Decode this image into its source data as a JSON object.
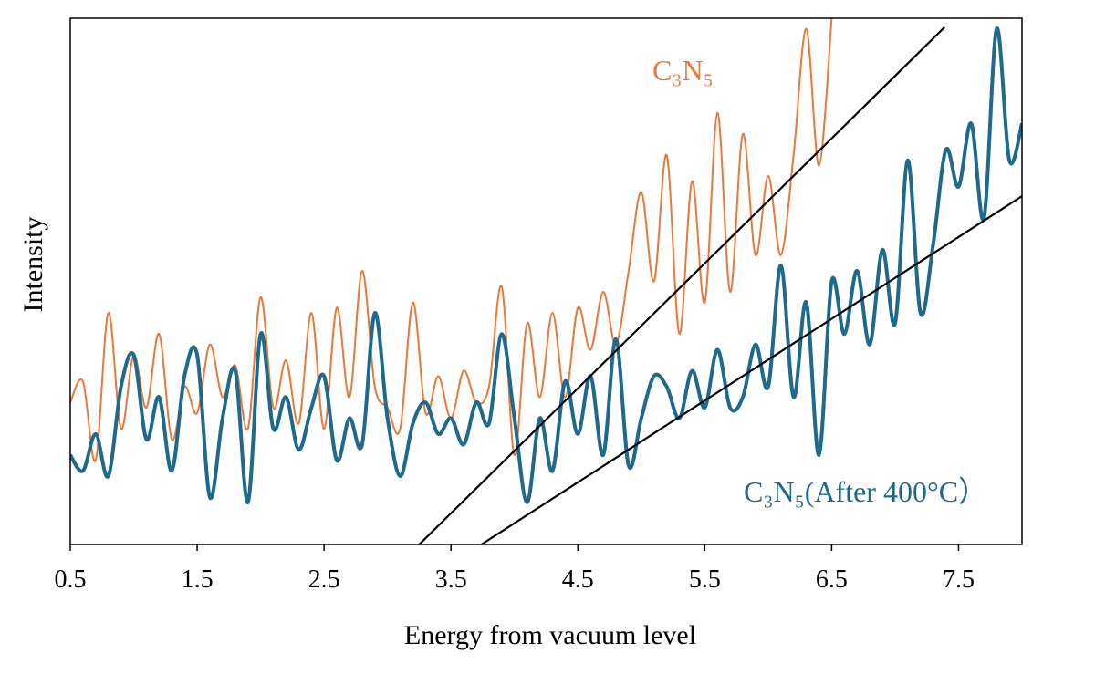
{
  "chart_data": {
    "type": "line",
    "x_label": "Energy from vacuum level",
    "y_label": "Intensity",
    "x": [
      0.5,
      0.6,
      0.7,
      0.8,
      0.9,
      1.0,
      1.1,
      1.2,
      1.3,
      1.4,
      1.5,
      1.6,
      1.7,
      1.8,
      1.9,
      2.0,
      2.1,
      2.2,
      2.3,
      2.4,
      2.5,
      2.6,
      2.7,
      2.8,
      2.9,
      3.0,
      3.1,
      3.2,
      3.3,
      3.4,
      3.5,
      3.6,
      3.7,
      3.8,
      3.9,
      4.0,
      4.1,
      4.2,
      4.3,
      4.4,
      4.5,
      4.6,
      4.7,
      4.8,
      4.9,
      5.0,
      5.1,
      5.2,
      5.3,
      5.4,
      5.5,
      5.6,
      5.7,
      5.8,
      5.9,
      6.0,
      6.1,
      6.2,
      6.3,
      6.4,
      6.5,
      6.6,
      6.7,
      6.8,
      6.9,
      7.0,
      7.1,
      7.2,
      7.3,
      7.4,
      7.5,
      7.6,
      7.7,
      7.8,
      7.9,
      8.0
    ],
    "series": [
      {
        "name": "C₃N₅",
        "color": "#e8793a",
        "width": 2,
        "values": [
          27,
          31,
          16,
          44,
          22,
          36,
          26,
          40,
          20,
          30,
          25,
          38,
          28,
          34,
          22,
          47,
          26,
          35,
          23,
          44,
          22,
          45,
          28,
          52,
          30,
          26,
          22,
          46,
          25,
          32,
          24,
          33,
          27,
          30,
          49,
          17,
          42,
          28,
          44,
          28,
          45,
          37,
          48,
          38,
          52,
          67,
          50,
          74,
          40,
          69,
          46,
          82,
          48,
          78,
          55,
          70,
          55,
          74,
          98,
          72,
          100,
          null,
          null,
          null,
          null,
          null,
          null,
          null,
          null,
          null,
          null,
          null,
          null,
          null,
          null,
          null
        ]
      },
      {
        "name": "C₃N₅(After 400°C）",
        "color": "#1f6a8c",
        "width": 4,
        "values": [
          17,
          14,
          21,
          13,
          30,
          36,
          20,
          28,
          14,
          32,
          36,
          9,
          24,
          33,
          8,
          40,
          22,
          28,
          18,
          26,
          32,
          16,
          24,
          19,
          44,
          24,
          13,
          23,
          27,
          21,
          24,
          19,
          27,
          23,
          40,
          24,
          8,
          24,
          14,
          31,
          21,
          32,
          17,
          39,
          15,
          24,
          32,
          30,
          24,
          33,
          26,
          37,
          26,
          28,
          38,
          30,
          53,
          28,
          46,
          17,
          50,
          40,
          52,
          38,
          56,
          42,
          73,
          44,
          57,
          75,
          68,
          80,
          62,
          98,
          73,
          80
        ]
      }
    ],
    "fit_lines": [
      {
        "x": [
          3.25,
          7.39
        ],
        "y": [
          0,
          98.3
        ]
      },
      {
        "x": [
          3.74,
          8.11
        ],
        "y": [
          0,
          67.9
        ]
      }
    ],
    "xlim": [
      0.5,
      8.0
    ],
    "ylim": [
      0,
      100
    ],
    "xticks": [
      0.5,
      1.5,
      2.5,
      3.5,
      4.5,
      5.5,
      6.5,
      7.5
    ]
  }
}
